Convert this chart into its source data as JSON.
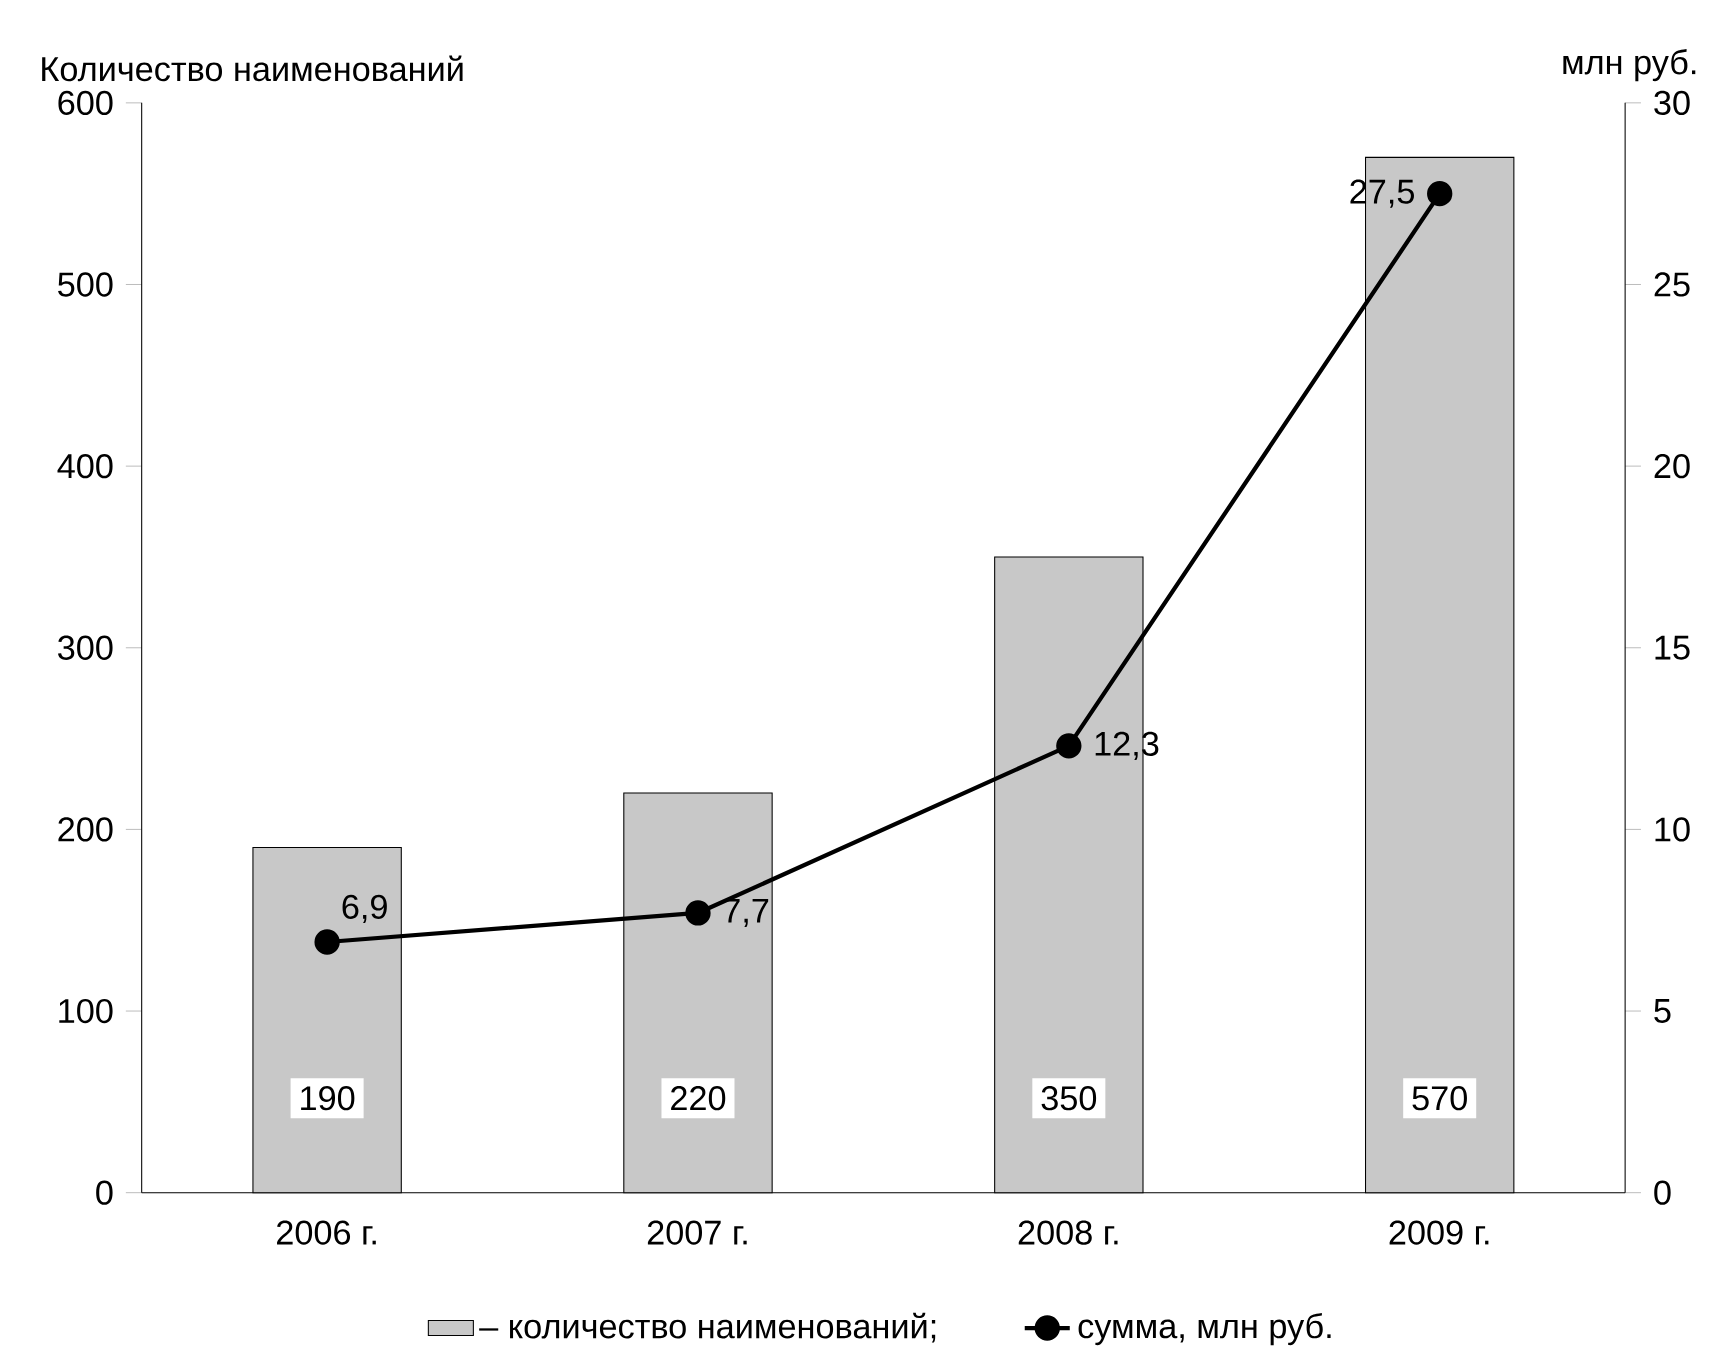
{
  "chart_data": {
    "type": "bar",
    "ylabel": "Количество наименований",
    "y2label": "млн руб.",
    "categories": [
      "2006 г.",
      "2007 г.",
      "2008 г.",
      "2009 г."
    ],
    "series": [
      {
        "name": "– количество наименований;",
        "color": "#c8c8c8",
        "values": [
          190,
          220,
          350,
          570
        ],
        "value_labels": [
          "190",
          "220",
          "350",
          "570"
        ]
      },
      {
        "name": "сумма, млн руб.",
        "type": "line",
        "axis": "y2",
        "marker": "circle",
        "color": "#000000",
        "values": [
          6.9,
          7.7,
          12.3,
          27.5
        ],
        "value_labels": [
          "6,9",
          "7,7",
          "12,3",
          "27,5"
        ]
      }
    ],
    "ylim": [
      0,
      600
    ],
    "yticks": [
      0,
      100,
      200,
      300,
      400,
      500,
      600
    ],
    "y2lim": [
      0,
      30
    ],
    "y2ticks": [
      0,
      5,
      10,
      15,
      20,
      25,
      30
    ],
    "legend": "bottom"
  }
}
